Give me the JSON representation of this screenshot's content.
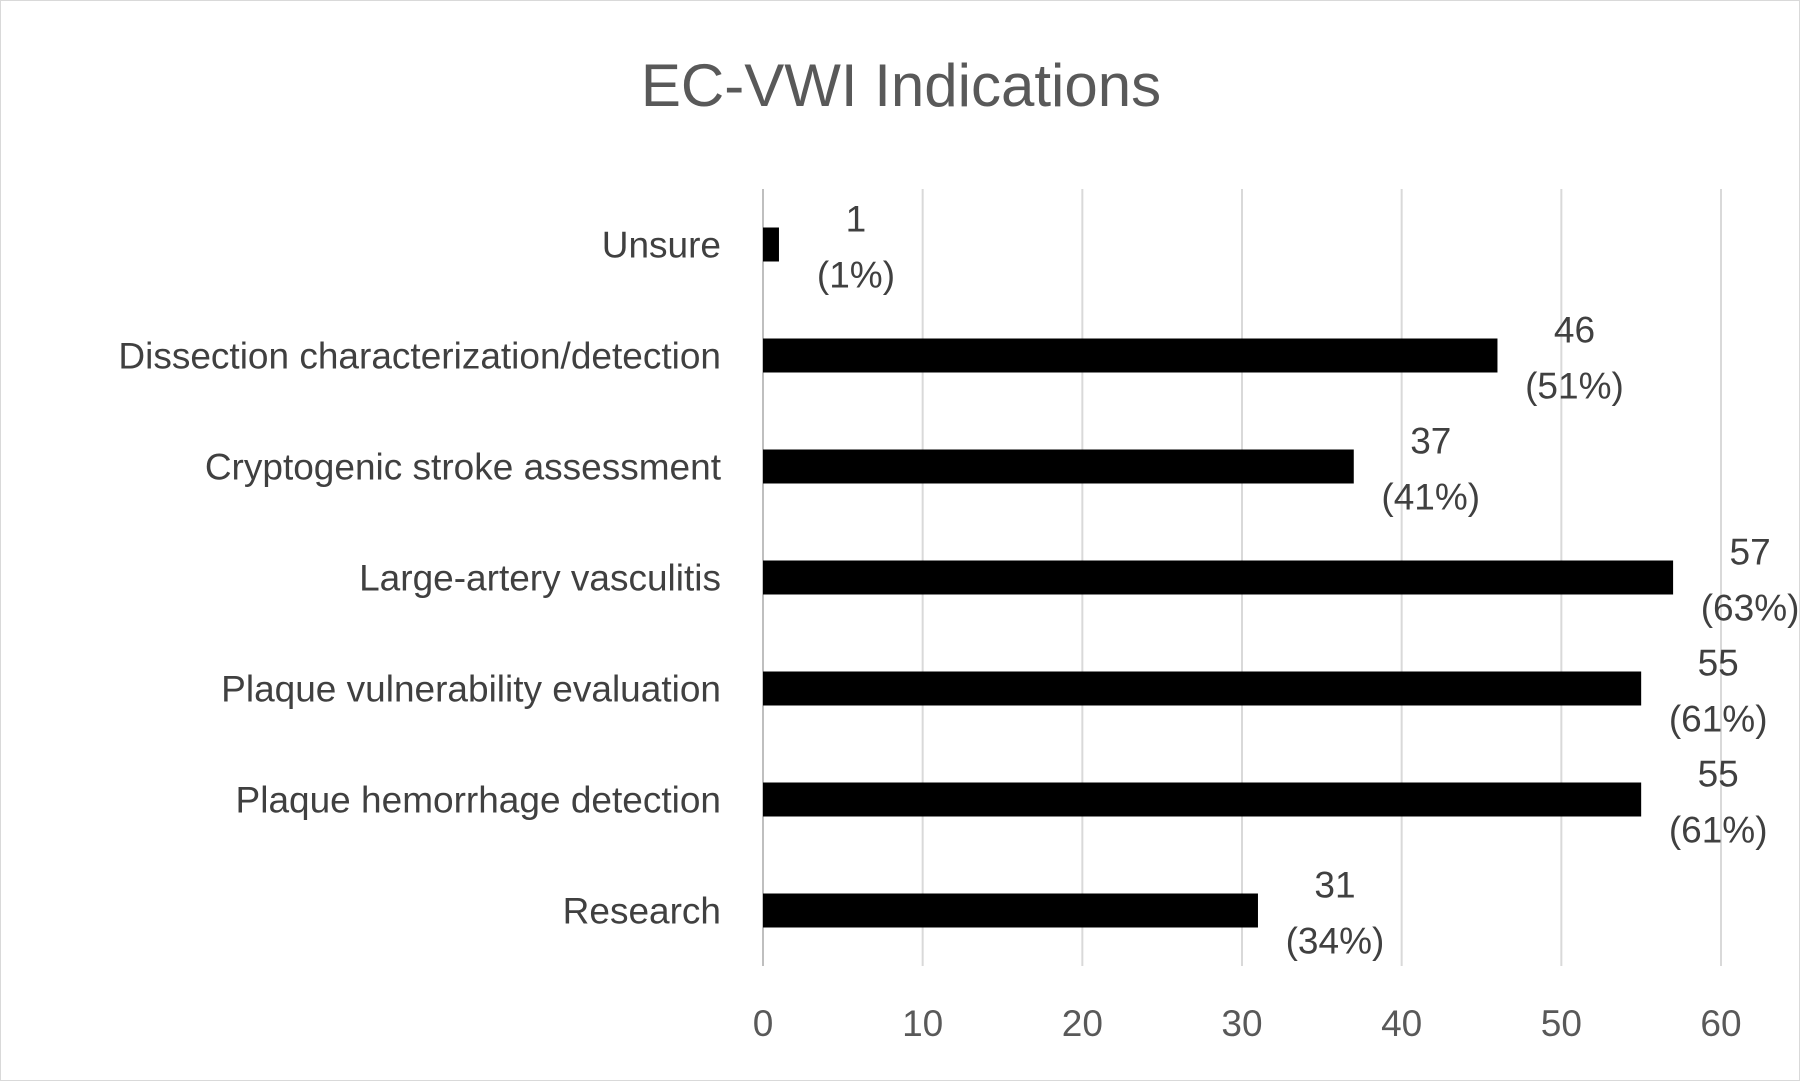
{
  "chart_data": {
    "type": "bar",
    "orientation": "horizontal",
    "title": "EC-VWI Indications",
    "xlabel": "",
    "ylabel": "",
    "categories": [
      "Unsure",
      "Dissection characterization/detection",
      "Cryptogenic stroke assessment",
      "Large-artery vasculitis",
      "Plaque vulnerability evaluation",
      "Plaque hemorrhage detection",
      "Research"
    ],
    "values": [
      1,
      46,
      37,
      57,
      55,
      55,
      31
    ],
    "percent_labels": [
      "(1%)",
      "(51%)",
      "(41%)",
      "(63%)",
      "(61%)",
      "(61%)",
      "(34%)"
    ],
    "xlim": [
      0,
      60
    ],
    "xticks": [
      "0",
      "10",
      "20",
      "30",
      "40",
      "50",
      "60"
    ],
    "grid": true,
    "legend": "none",
    "bar_color": "#000000"
  }
}
